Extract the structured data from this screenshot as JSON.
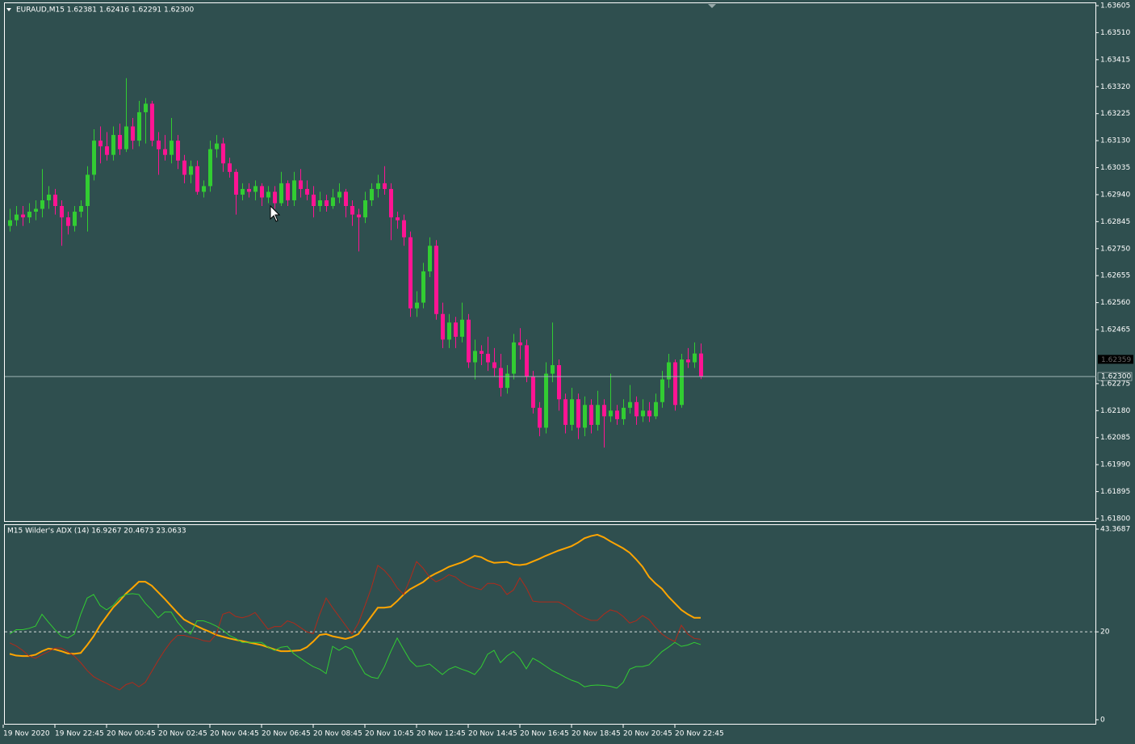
{
  "chart_data": [
    {
      "type": "candlestick",
      "title": "EURAUD,M15  1.62381 1.62416 1.62291 1.62300",
      "colors": {
        "up": "#32cd32",
        "down": "#ff1493"
      },
      "ylim": [
        1.618,
        1.63605
      ],
      "yticks": [
        {
          "value": 1.63605,
          "label": "1.63605"
        },
        {
          "value": 1.6351,
          "label": "1.63510"
        },
        {
          "value": 1.63415,
          "label": "1.63415"
        },
        {
          "value": 1.6332,
          "label": "1.63320"
        },
        {
          "value": 1.63225,
          "label": "1.63225"
        },
        {
          "value": 1.6313,
          "label": "1.63130"
        },
        {
          "value": 1.63035,
          "label": "1.63035"
        },
        {
          "value": 1.6294,
          "label": "1.62940"
        },
        {
          "value": 1.62845,
          "label": "1.62845"
        },
        {
          "value": 1.6275,
          "label": "1.62750"
        },
        {
          "value": 1.62655,
          "label": "1.62655"
        },
        {
          "value": 1.6256,
          "label": "1.62560"
        },
        {
          "value": 1.62465,
          "label": "1.62465"
        },
        {
          "value": 1.62275,
          "label": "1.62275"
        },
        {
          "value": 1.6218,
          "label": "1.62180"
        },
        {
          "value": 1.62085,
          "label": "1.62085"
        },
        {
          "value": 1.6199,
          "label": "1.61990"
        },
        {
          "value": 1.61895,
          "label": "1.61895"
        },
        {
          "value": 1.618,
          "label": "1.61800"
        }
      ],
      "bid": {
        "value": 1.623,
        "label": "1.62300"
      },
      "ask": 1.62359,
      "xlabels": [
        "19 Nov 2020",
        "19 Nov 22:45",
        "20 Nov 00:45",
        "20 Nov 02:45",
        "20 Nov 04:45",
        "20 Nov 06:45",
        "20 Nov 08:45",
        "20 Nov 10:45",
        "20 Nov 12:45",
        "20 Nov 14:45",
        "20 Nov 16:45",
        "20 Nov 18:45",
        "20 Nov 20:45",
        "20 Nov 22:45"
      ],
      "candles": [
        [
          1.6283,
          1.6289,
          1.6281,
          1.6285
        ],
        [
          1.6285,
          1.629,
          1.6283,
          1.6287
        ],
        [
          1.6287,
          1.629,
          1.6283,
          1.6286
        ],
        [
          1.6286,
          1.6291,
          1.6284,
          1.6288
        ],
        [
          1.6288,
          1.6292,
          1.6285,
          1.6289
        ],
        [
          1.6289,
          1.6303,
          1.6286,
          1.6292
        ],
        [
          1.6292,
          1.6297,
          1.6289,
          1.6294
        ],
        [
          1.6294,
          1.6296,
          1.6287,
          1.629
        ],
        [
          1.629,
          1.6292,
          1.6276,
          1.6286
        ],
        [
          1.6286,
          1.6288,
          1.628,
          1.6283
        ],
        [
          1.6283,
          1.629,
          1.6281,
          1.6288
        ],
        [
          1.6288,
          1.6292,
          1.6286,
          1.629
        ],
        [
          1.629,
          1.6304,
          1.6281,
          1.6301
        ],
        [
          1.6301,
          1.6317,
          1.6299,
          1.6313
        ],
        [
          1.6313,
          1.6318,
          1.6305,
          1.6311
        ],
        [
          1.6311,
          1.6316,
          1.6306,
          1.6308
        ],
        [
          1.6308,
          1.6318,
          1.6306,
          1.6315
        ],
        [
          1.6315,
          1.6319,
          1.6308,
          1.631
        ],
        [
          1.631,
          1.6335,
          1.6309,
          1.6318
        ],
        [
          1.6318,
          1.6321,
          1.631,
          1.6313
        ],
        [
          1.6313,
          1.6327,
          1.6311,
          1.6323
        ],
        [
          1.6323,
          1.6328,
          1.6312,
          1.6326
        ],
        [
          1.6326,
          1.6327,
          1.6311,
          1.6313
        ],
        [
          1.6313,
          1.6316,
          1.6301,
          1.631
        ],
        [
          1.631,
          1.6315,
          1.6306,
          1.6308
        ],
        [
          1.6308,
          1.6321,
          1.6305,
          1.6313
        ],
        [
          1.6313,
          1.6315,
          1.6303,
          1.6306
        ],
        [
          1.6306,
          1.6308,
          1.6298,
          1.6301
        ],
        [
          1.6301,
          1.6306,
          1.6298,
          1.6304
        ],
        [
          1.6304,
          1.6306,
          1.6294,
          1.6295
        ],
        [
          1.6295,
          1.6299,
          1.6293,
          1.6297
        ],
        [
          1.6297,
          1.6313,
          1.6295,
          1.631
        ],
        [
          1.631,
          1.6315,
          1.6307,
          1.6312
        ],
        [
          1.6312,
          1.6314,
          1.6302,
          1.6305
        ],
        [
          1.6305,
          1.6307,
          1.63,
          1.6302
        ],
        [
          1.6302,
          1.6303,
          1.6287,
          1.6294
        ],
        [
          1.6294,
          1.6298,
          1.6292,
          1.6296
        ],
        [
          1.6296,
          1.6298,
          1.6293,
          1.6295
        ],
        [
          1.6295,
          1.6299,
          1.6292,
          1.6297
        ],
        [
          1.6297,
          1.6298,
          1.629,
          1.6293
        ],
        [
          1.6293,
          1.6297,
          1.6291,
          1.6295
        ],
        [
          1.6295,
          1.6297,
          1.6289,
          1.6291
        ],
        [
          1.6291,
          1.6302,
          1.629,
          1.6298
        ],
        [
          1.6298,
          1.6299,
          1.629,
          1.6292
        ],
        [
          1.6292,
          1.6302,
          1.629,
          1.6299
        ],
        [
          1.6299,
          1.6303,
          1.6293,
          1.6296
        ],
        [
          1.6296,
          1.6299,
          1.6292,
          1.6294
        ],
        [
          1.6294,
          1.6297,
          1.6286,
          1.629
        ],
        [
          1.629,
          1.6295,
          1.6288,
          1.6292
        ],
        [
          1.6292,
          1.6294,
          1.6288,
          1.629
        ],
        [
          1.629,
          1.6296,
          1.6289,
          1.6293
        ],
        [
          1.6293,
          1.6298,
          1.6291,
          1.6295
        ],
        [
          1.6295,
          1.6296,
          1.6286,
          1.629
        ],
        [
          1.629,
          1.6292,
          1.6283,
          1.6287
        ],
        [
          1.6287,
          1.6289,
          1.6274,
          1.6286
        ],
        [
          1.6286,
          1.6295,
          1.6284,
          1.6292
        ],
        [
          1.6292,
          1.6298,
          1.629,
          1.6296
        ],
        [
          1.6296,
          1.6301,
          1.6293,
          1.6298
        ],
        [
          1.6298,
          1.6304,
          1.6294,
          1.6296
        ],
        [
          1.6296,
          1.6298,
          1.6278,
          1.6286
        ],
        [
          1.6286,
          1.6288,
          1.6282,
          1.6285
        ],
        [
          1.6285,
          1.6287,
          1.6276,
          1.6279
        ],
        [
          1.6279,
          1.6281,
          1.6251,
          1.6254
        ],
        [
          1.6254,
          1.626,
          1.6251,
          1.6256
        ],
        [
          1.6256,
          1.627,
          1.6254,
          1.6267
        ],
        [
          1.6267,
          1.6279,
          1.6265,
          1.6276
        ],
        [
          1.6276,
          1.6278,
          1.625,
          1.6252
        ],
        [
          1.6252,
          1.6256,
          1.624,
          1.6243
        ],
        [
          1.6243,
          1.6252,
          1.624,
          1.6249
        ],
        [
          1.6249,
          1.6251,
          1.624,
          1.6244
        ],
        [
          1.6244,
          1.6256,
          1.6242,
          1.625
        ],
        [
          1.625,
          1.6252,
          1.6233,
          1.6235
        ],
        [
          1.6235,
          1.6243,
          1.6229,
          1.6239
        ],
        [
          1.6239,
          1.6241,
          1.6234,
          1.6238
        ],
        [
          1.6238,
          1.6244,
          1.6232,
          1.6235
        ],
        [
          1.6235,
          1.624,
          1.623,
          1.6233
        ],
        [
          1.6233,
          1.6238,
          1.6223,
          1.6226
        ],
        [
          1.6226,
          1.6234,
          1.6224,
          1.6231
        ],
        [
          1.6231,
          1.6245,
          1.6229,
          1.6242
        ],
        [
          1.6242,
          1.6247,
          1.6236,
          1.6241
        ],
        [
          1.6241,
          1.6243,
          1.6228,
          1.623
        ],
        [
          1.623,
          1.6232,
          1.6217,
          1.6219
        ],
        [
          1.6219,
          1.6221,
          1.6209,
          1.6212
        ],
        [
          1.6212,
          1.6235,
          1.621,
          1.6231
        ],
        [
          1.6231,
          1.6249,
          1.6228,
          1.6234
        ],
        [
          1.6234,
          1.6236,
          1.6218,
          1.6222
        ],
        [
          1.6222,
          1.6224,
          1.621,
          1.6213
        ],
        [
          1.6213,
          1.6226,
          1.6211,
          1.6222
        ],
        [
          1.6222,
          1.6224,
          1.6208,
          1.6212
        ],
        [
          1.6212,
          1.6223,
          1.6209,
          1.622
        ],
        [
          1.622,
          1.6222,
          1.621,
          1.6213
        ],
        [
          1.6213,
          1.6225,
          1.6211,
          1.622
        ],
        [
          1.622,
          1.6222,
          1.6205,
          1.6216
        ],
        [
          1.6216,
          1.6231,
          1.6214,
          1.6218
        ],
        [
          1.6218,
          1.622,
          1.6213,
          1.6215
        ],
        [
          1.6215,
          1.6222,
          1.6213,
          1.6219
        ],
        [
          1.6219,
          1.6227,
          1.6217,
          1.6221
        ],
        [
          1.6221,
          1.6223,
          1.6213,
          1.6216
        ],
        [
          1.6216,
          1.6222,
          1.6214,
          1.6218
        ],
        [
          1.6218,
          1.6221,
          1.6214,
          1.6216
        ],
        [
          1.6216,
          1.6224,
          1.6215,
          1.6221
        ],
        [
          1.6221,
          1.6232,
          1.6219,
          1.6229
        ],
        [
          1.6229,
          1.6238,
          1.6226,
          1.6235
        ],
        [
          1.6235,
          1.6236,
          1.6218,
          1.622
        ],
        [
          1.622,
          1.6238,
          1.6219,
          1.6236
        ],
        [
          1.6236,
          1.624,
          1.6233,
          1.6235
        ],
        [
          1.6235,
          1.6242,
          1.6233,
          1.62381
        ],
        [
          1.62381,
          1.62416,
          1.62291,
          1.623
        ]
      ]
    },
    {
      "type": "line",
      "title": "M15 Wilder's  ADX (14) 16.9267 20.4673 23.0633",
      "ylim": [
        0,
        43.3687
      ],
      "yticks": [
        43.3687,
        20,
        0
      ],
      "levels": [
        20
      ],
      "series": [
        {
          "color": "#ffa500",
          "values": [
            15.0,
            14.6,
            14.5,
            14.5,
            14.8,
            15.6,
            16.2,
            16.0,
            15.6,
            15.1,
            15.0,
            15.2,
            17.0,
            19.0,
            21.5,
            23.5,
            25.5,
            27.0,
            28.7,
            30.0,
            31.4,
            31.4,
            30.5,
            29.0,
            27.5,
            25.9,
            24.3,
            22.8,
            22.0,
            21.3,
            20.6,
            20.0,
            19.3,
            18.9,
            18.5,
            18.2,
            17.9,
            17.6,
            17.3,
            17.0,
            16.5,
            16.0,
            15.6,
            15.6,
            15.7,
            15.8,
            16.5,
            17.8,
            19.3,
            19.5,
            19.0,
            18.7,
            18.4,
            18.8,
            19.5,
            21.5,
            23.5,
            25.5,
            25.5,
            25.7,
            27.0,
            28.5,
            29.7,
            30.5,
            31.3,
            32.5,
            33.3,
            34.0,
            34.8,
            35.3,
            35.8,
            36.5,
            37.3,
            37.0,
            36.2,
            35.7,
            35.8,
            35.9,
            35.3,
            35.2,
            35.4,
            36.0,
            36.6,
            37.3,
            37.9,
            38.5,
            39.0,
            39.5,
            40.3,
            41.3,
            41.8,
            42.1,
            41.5,
            40.6,
            39.8,
            39.0,
            38.0,
            36.5,
            34.8,
            32.5,
            31.0,
            29.8,
            28.0,
            26.5,
            25.0,
            24.0,
            23.2,
            23.2
          ]
        },
        {
          "color": "#b22a1a",
          "values": [
            17.5,
            16.8,
            15.8,
            14.5,
            14.0,
            14.8,
            15.5,
            16.3,
            16.3,
            15.5,
            14.5,
            13.0,
            11.2,
            9.8,
            9.0,
            8.3,
            7.5,
            6.8,
            8.0,
            8.5,
            7.5,
            8.5,
            11.0,
            13.5,
            15.8,
            17.8,
            19.2,
            19.2,
            18.8,
            18.5,
            18.0,
            17.8,
            19.5,
            24.0,
            24.5,
            23.5,
            23.2,
            23.6,
            24.4,
            22.5,
            20.6,
            21.2,
            21.2,
            22.5,
            22.0,
            21.0,
            20.0,
            19.6,
            24.0,
            27.7,
            25.5,
            23.5,
            21.5,
            19.5,
            22.0,
            25.9,
            30.0,
            35.1,
            34.0,
            32.3,
            30.0,
            28.5,
            32.0,
            36.0,
            34.5,
            32.5,
            31.4,
            32.0,
            33.0,
            32.5,
            31.3,
            30.5,
            30.0,
            29.6,
            31.0,
            31.0,
            30.5,
            28.5,
            29.5,
            32.3,
            30.0,
            27.0,
            26.8,
            26.8,
            26.8,
            26.8,
            26.0,
            25.0,
            24.0,
            23.2,
            22.6,
            22.6,
            24.0,
            25.0,
            24.6,
            23.5,
            22.0,
            22.5,
            23.7,
            22.8,
            21.0,
            19.5,
            18.5,
            17.8,
            21.5,
            19.5,
            18.5,
            18.3
          ]
        },
        {
          "color": "#32cd32",
          "values": [
            19.5,
            20.5,
            20.5,
            20.8,
            21.3,
            24.0,
            22.2,
            20.5,
            19.0,
            18.6,
            19.5,
            24.0,
            27.7,
            28.5,
            26.0,
            25.0,
            26.0,
            27.7,
            28.5,
            28.7,
            28.5,
            26.5,
            25.0,
            23.2,
            24.5,
            24.5,
            22.2,
            20.5,
            19.5,
            22.5,
            22.5,
            22.0,
            21.3,
            20.4,
            19.2,
            18.5,
            17.6,
            17.6,
            17.6,
            17.6,
            16.5,
            15.8,
            16.5,
            16.7,
            15.0,
            14.0,
            13.0,
            12.1,
            11.5,
            10.5,
            16.7,
            15.8,
            16.7,
            16.0,
            13.0,
            10.5,
            9.7,
            9.4,
            12.0,
            15.5,
            18.6,
            16.0,
            13.5,
            12.1,
            12.3,
            12.7,
            11.5,
            10.3,
            11.5,
            12.1,
            11.5,
            11.0,
            10.3,
            12.0,
            14.9,
            15.8,
            13.0,
            14.5,
            15.5,
            14.0,
            11.6,
            14.0,
            13.2,
            12.2,
            11.2,
            10.5,
            9.7,
            9.0,
            8.5,
            7.5,
            7.8,
            7.9,
            7.8,
            7.6,
            7.2,
            8.5,
            11.5,
            12.1,
            12.1,
            12.5,
            14.0,
            15.5,
            16.5,
            17.6,
            16.7,
            17.0,
            17.6,
            17.1
          ]
        }
      ]
    }
  ]
}
